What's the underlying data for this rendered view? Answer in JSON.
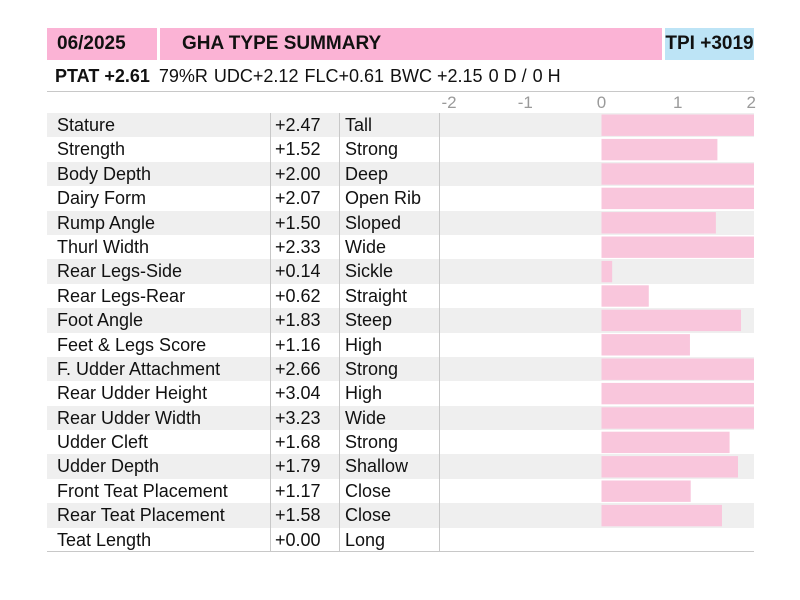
{
  "header": {
    "date": "06/2025",
    "title": "GHA TYPE SUMMARY",
    "tpi": "TPI +3019"
  },
  "summary": {
    "ptat": "PTAT +2.61",
    "reliability": "79%R",
    "udc": "UDC+2.12",
    "flc": "FLC+0.61",
    "bwc": "BWC +2.15",
    "daughters": "0 D /",
    "herds": "0 H"
  },
  "colors": {
    "header_pink": "#fbb3d5",
    "header_blue": "#bde4f6",
    "bar_pink": "#f9c6dc",
    "row_shade": "#efefef"
  },
  "chart_data": {
    "type": "bar",
    "orientation": "horizontal",
    "xlim": [
      -2,
      2
    ],
    "ticks": [
      "-2",
      "-1",
      "0",
      "1",
      "2"
    ],
    "rows": [
      {
        "trait": "Stature",
        "value": 2.47,
        "value_label": "+2.47",
        "descriptor": "Tall"
      },
      {
        "trait": "Strength",
        "value": 1.52,
        "value_label": "+1.52",
        "descriptor": "Strong"
      },
      {
        "trait": "Body Depth",
        "value": 2.0,
        "value_label": "+2.00",
        "descriptor": "Deep"
      },
      {
        "trait": "Dairy Form",
        "value": 2.07,
        "value_label": "+2.07",
        "descriptor": "Open Rib"
      },
      {
        "trait": "Rump Angle",
        "value": 1.5,
        "value_label": "+1.50",
        "descriptor": "Sloped"
      },
      {
        "trait": "Thurl Width",
        "value": 2.33,
        "value_label": "+2.33",
        "descriptor": "Wide"
      },
      {
        "trait": "Rear Legs-Side",
        "value": 0.14,
        "value_label": "+0.14",
        "descriptor": "Sickle"
      },
      {
        "trait": "Rear Legs-Rear",
        "value": 0.62,
        "value_label": "+0.62",
        "descriptor": "Straight"
      },
      {
        "trait": "Foot Angle",
        "value": 1.83,
        "value_label": "+1.83",
        "descriptor": "Steep"
      },
      {
        "trait": "Feet & Legs Score",
        "value": 1.16,
        "value_label": "+1.16",
        "descriptor": "High"
      },
      {
        "trait": "F. Udder Attachment",
        "value": 2.66,
        "value_label": "+2.66",
        "descriptor": "Strong"
      },
      {
        "trait": "Rear Udder Height",
        "value": 3.04,
        "value_label": "+3.04",
        "descriptor": "High"
      },
      {
        "trait": "Rear Udder Width",
        "value": 3.23,
        "value_label": "+3.23",
        "descriptor": "Wide"
      },
      {
        "trait": "Udder Cleft",
        "value": 1.68,
        "value_label": "+1.68",
        "descriptor": "Strong"
      },
      {
        "trait": "Udder Depth",
        "value": 1.79,
        "value_label": "+1.79",
        "descriptor": "Shallow"
      },
      {
        "trait": "Front Teat Placement",
        "value": 1.17,
        "value_label": "+1.17",
        "descriptor": "Close"
      },
      {
        "trait": "Rear Teat Placement",
        "value": 1.58,
        "value_label": "+1.58",
        "descriptor": "Close"
      },
      {
        "trait": "Teat Length",
        "value": 0.0,
        "value_label": "+0.00",
        "descriptor": "Long"
      }
    ]
  }
}
